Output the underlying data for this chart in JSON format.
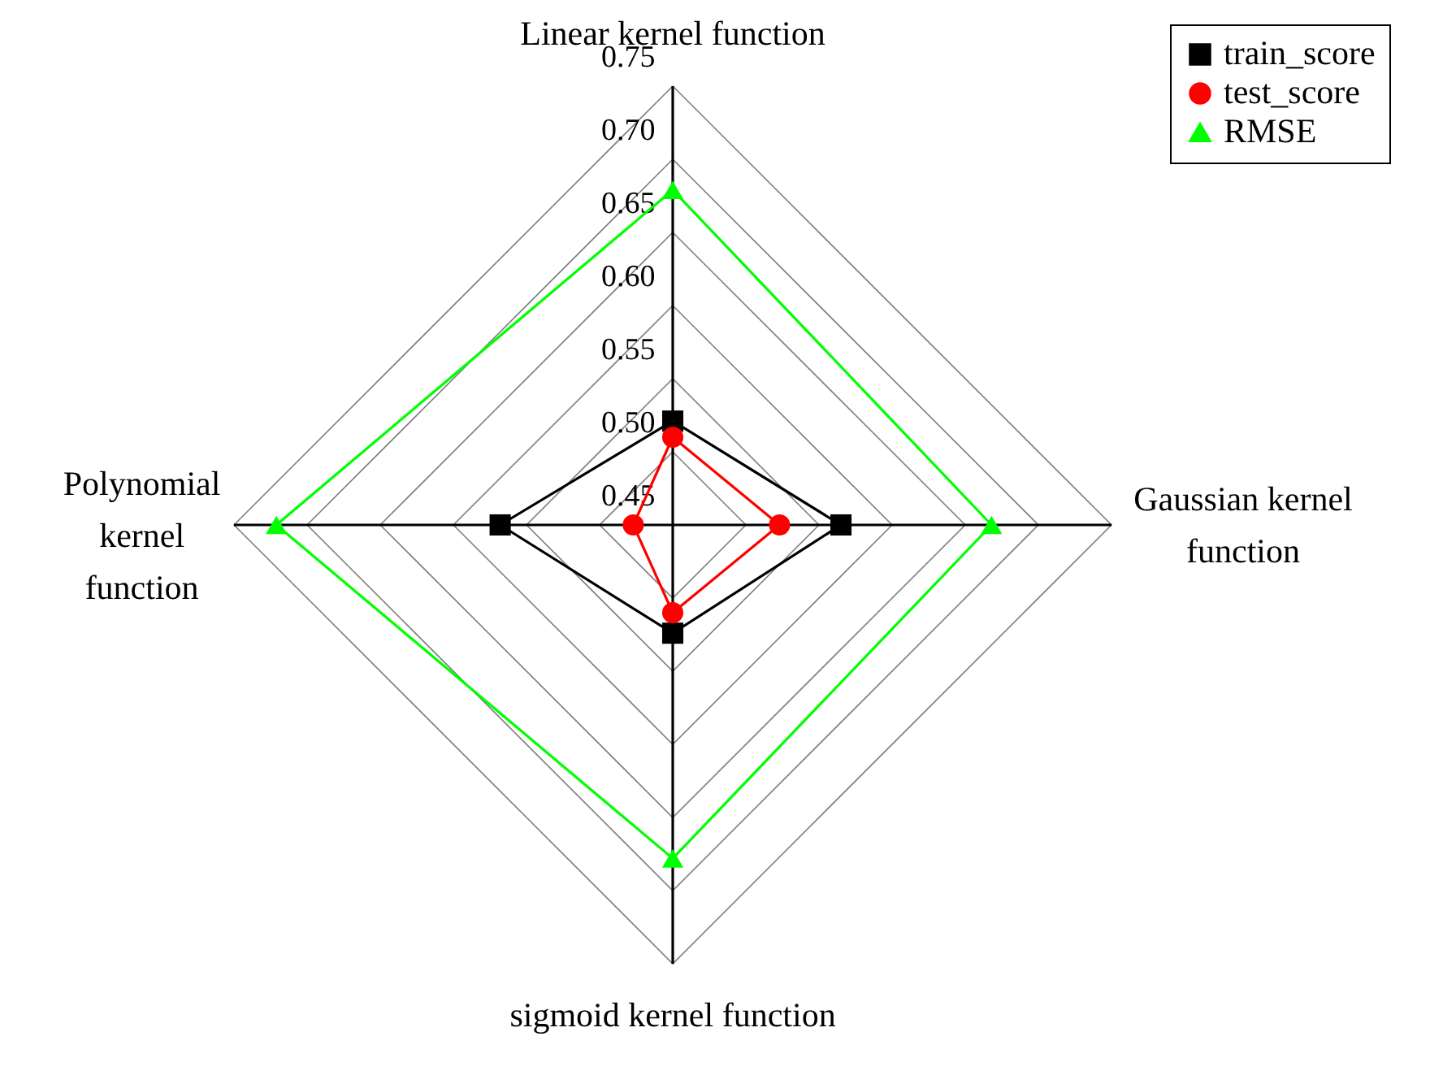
{
  "chart_data": {
    "type": "radar",
    "categories": [
      "Linear kernel function",
      "Gaussian kernel function",
      "sigmoid kernel function",
      "Polynomial kernel function"
    ],
    "series": [
      {
        "name": "train_score",
        "color": "#000000",
        "marker": "square",
        "values": [
          0.521,
          0.565,
          0.524,
          0.568
        ]
      },
      {
        "name": "test_score",
        "color": "#ff0000",
        "marker": "circle",
        "values": [
          0.51,
          0.523,
          0.51,
          0.477
        ]
      },
      {
        "name": "RMSE",
        "color": "#00ff00",
        "marker": "triangle",
        "values": [
          0.679,
          0.668,
          0.678,
          0.721
        ]
      }
    ],
    "ylim": [
      0.45,
      0.75
    ],
    "yticks": [
      0.45,
      {
        "value": 0.5,
        "label": "0.50"
      },
      0.55,
      {
        "value": 0.6,
        "label": "0.60"
      },
      0.65,
      {
        "value": 0.7,
        "label": "0.70"
      },
      0.75
    ],
    "grid": true,
    "legend": "top right",
    "line_style": "solid"
  }
}
